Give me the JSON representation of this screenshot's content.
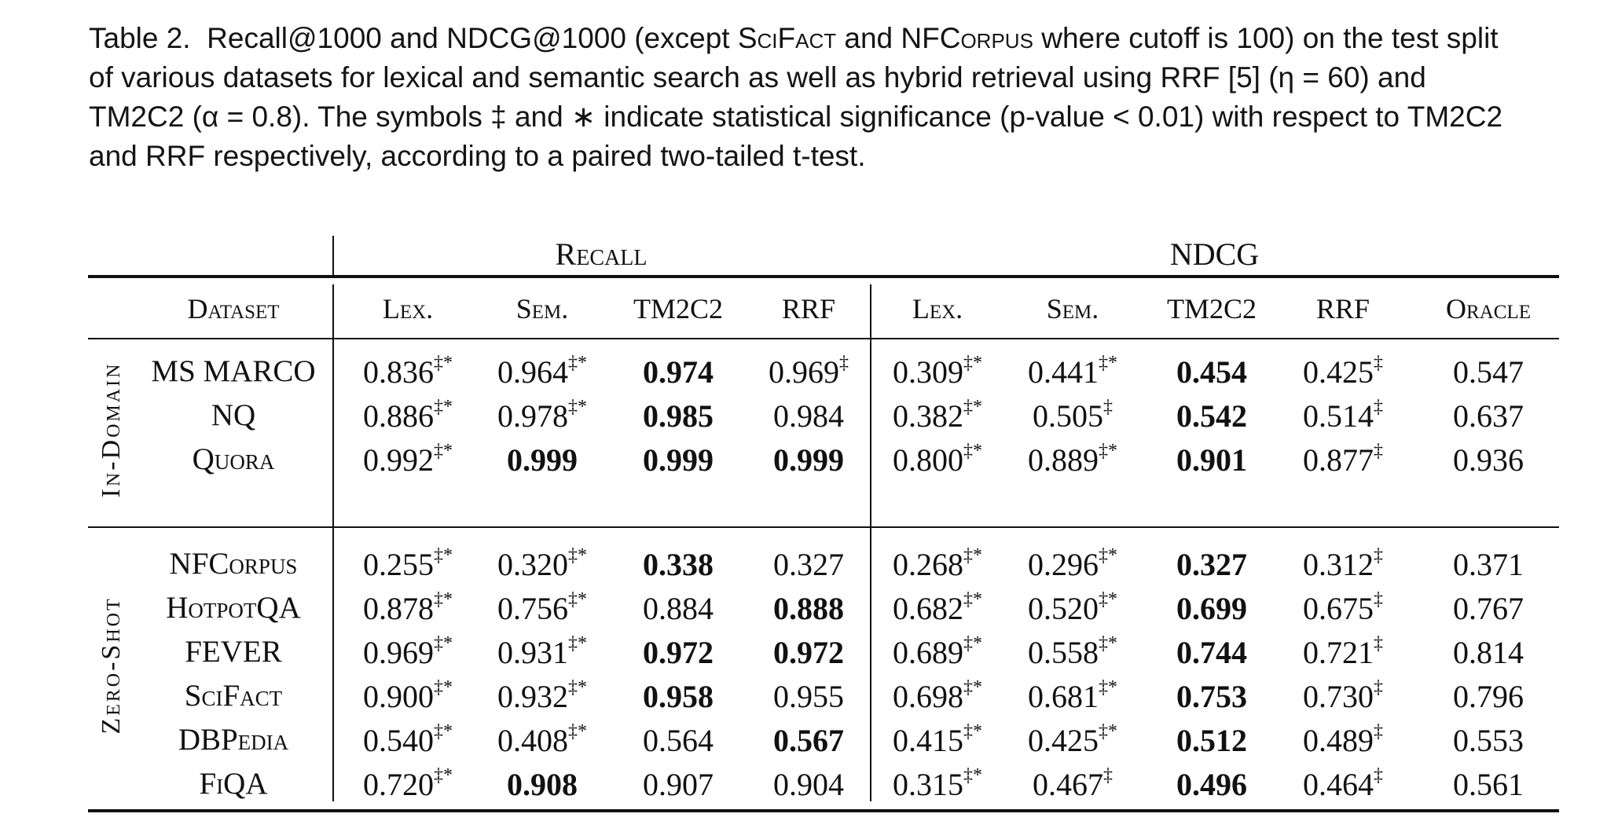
{
  "caption": {
    "label": "Table 2.",
    "line1_a": "Recall@1000 and NDCG@1000 (except ",
    "line1_sc1": "SciFact",
    "line1_b": " and ",
    "line1_sc2": "NFCorpus",
    "line1_c": " where cutoff is 100) on the test split",
    "line2": "of various datasets for lexical and semantic search as well as hybrid retrieval using RRF [5] (η = 60) and",
    "line3": "TM2C2 (α = 0.8). The symbols ‡ and ∗ indicate statistical significance (p-value < 0.01) with respect to TM2C2",
    "line4": "and RRF respectively, according to a paired two-tailed t-test."
  },
  "table": {
    "group_headers": {
      "recall": "Recall",
      "ndcg": "NDCG"
    },
    "columns": [
      "Dataset",
      "Lex.",
      "Sem.",
      "TM2C2",
      "RRF",
      "Lex.",
      "Sem.",
      "TM2C2",
      "RRF",
      "Oracle"
    ],
    "sections": [
      {
        "label": "In-Domain",
        "rows": [
          {
            "dataset": "MS MARCO",
            "cells": [
              {
                "v": "0.836",
                "s": "‡*",
                "b": false
              },
              {
                "v": "0.964",
                "s": "‡*",
                "b": false
              },
              {
                "v": "0.974",
                "s": "",
                "b": true
              },
              {
                "v": "0.969",
                "s": "‡",
                "b": false
              },
              {
                "v": "0.309",
                "s": "‡*",
                "b": false
              },
              {
                "v": "0.441",
                "s": "‡*",
                "b": false
              },
              {
                "v": "0.454",
                "s": "",
                "b": true
              },
              {
                "v": "0.425",
                "s": "‡",
                "b": false
              },
              {
                "v": "0.547",
                "s": "",
                "b": false
              }
            ]
          },
          {
            "dataset": "NQ",
            "cells": [
              {
                "v": "0.886",
                "s": "‡*",
                "b": false
              },
              {
                "v": "0.978",
                "s": "‡*",
                "b": false
              },
              {
                "v": "0.985",
                "s": "",
                "b": true
              },
              {
                "v": "0.984",
                "s": "",
                "b": false
              },
              {
                "v": "0.382",
                "s": "‡*",
                "b": false
              },
              {
                "v": "0.505",
                "s": "‡",
                "b": false
              },
              {
                "v": "0.542",
                "s": "",
                "b": true
              },
              {
                "v": "0.514",
                "s": "‡",
                "b": false
              },
              {
                "v": "0.637",
                "s": "",
                "b": false
              }
            ]
          },
          {
            "dataset": "Quora",
            "cells": [
              {
                "v": "0.992",
                "s": "‡*",
                "b": false
              },
              {
                "v": "0.999",
                "s": "",
                "b": true
              },
              {
                "v": "0.999",
                "s": "",
                "b": true
              },
              {
                "v": "0.999",
                "s": "",
                "b": true
              },
              {
                "v": "0.800",
                "s": "‡*",
                "b": false
              },
              {
                "v": "0.889",
                "s": "‡*",
                "b": false
              },
              {
                "v": "0.901",
                "s": "",
                "b": true
              },
              {
                "v": "0.877",
                "s": "‡",
                "b": false
              },
              {
                "v": "0.936",
                "s": "",
                "b": false
              }
            ]
          }
        ]
      },
      {
        "label": "Zero-Shot",
        "rows": [
          {
            "dataset": "NFCorpus",
            "cells": [
              {
                "v": "0.255",
                "s": "‡*",
                "b": false
              },
              {
                "v": "0.320",
                "s": "‡*",
                "b": false
              },
              {
                "v": "0.338",
                "s": "",
                "b": true
              },
              {
                "v": "0.327",
                "s": "",
                "b": false
              },
              {
                "v": "0.268",
                "s": "‡*",
                "b": false
              },
              {
                "v": "0.296",
                "s": "‡*",
                "b": false
              },
              {
                "v": "0.327",
                "s": "",
                "b": true
              },
              {
                "v": "0.312",
                "s": "‡",
                "b": false
              },
              {
                "v": "0.371",
                "s": "",
                "b": false
              }
            ]
          },
          {
            "dataset": "HotpotQA",
            "cells": [
              {
                "v": "0.878",
                "s": "‡*",
                "b": false
              },
              {
                "v": "0.756",
                "s": "‡*",
                "b": false
              },
              {
                "v": "0.884",
                "s": "",
                "b": false
              },
              {
                "v": "0.888",
                "s": "",
                "b": true
              },
              {
                "v": "0.682",
                "s": "‡*",
                "b": false
              },
              {
                "v": "0.520",
                "s": "‡*",
                "b": false
              },
              {
                "v": "0.699",
                "s": "",
                "b": true
              },
              {
                "v": "0.675",
                "s": "‡",
                "b": false
              },
              {
                "v": "0.767",
                "s": "",
                "b": false
              }
            ]
          },
          {
            "dataset": "FEVER",
            "cells": [
              {
                "v": "0.969",
                "s": "‡*",
                "b": false
              },
              {
                "v": "0.931",
                "s": "‡*",
                "b": false
              },
              {
                "v": "0.972",
                "s": "",
                "b": true
              },
              {
                "v": "0.972",
                "s": "",
                "b": true
              },
              {
                "v": "0.689",
                "s": "‡*",
                "b": false
              },
              {
                "v": "0.558",
                "s": "‡*",
                "b": false
              },
              {
                "v": "0.744",
                "s": "",
                "b": true
              },
              {
                "v": "0.721",
                "s": "‡",
                "b": false
              },
              {
                "v": "0.814",
                "s": "",
                "b": false
              }
            ]
          },
          {
            "dataset": "SciFact",
            "cells": [
              {
                "v": "0.900",
                "s": "‡*",
                "b": false
              },
              {
                "v": "0.932",
                "s": "‡*",
                "b": false
              },
              {
                "v": "0.958",
                "s": "",
                "b": true
              },
              {
                "v": "0.955",
                "s": "",
                "b": false
              },
              {
                "v": "0.698",
                "s": "‡*",
                "b": false
              },
              {
                "v": "0.681",
                "s": "‡*",
                "b": false
              },
              {
                "v": "0.753",
                "s": "",
                "b": true
              },
              {
                "v": "0.730",
                "s": "‡",
                "b": false
              },
              {
                "v": "0.796",
                "s": "",
                "b": false
              }
            ]
          },
          {
            "dataset": "DBPedia",
            "cells": [
              {
                "v": "0.540",
                "s": "‡*",
                "b": false
              },
              {
                "v": "0.408",
                "s": "‡*",
                "b": false
              },
              {
                "v": "0.564",
                "s": "",
                "b": false
              },
              {
                "v": "0.567",
                "s": "",
                "b": true
              },
              {
                "v": "0.415",
                "s": "‡*",
                "b": false
              },
              {
                "v": "0.425",
                "s": "‡*",
                "b": false
              },
              {
                "v": "0.512",
                "s": "",
                "b": true
              },
              {
                "v": "0.489",
                "s": "‡",
                "b": false
              },
              {
                "v": "0.553",
                "s": "",
                "b": false
              }
            ]
          },
          {
            "dataset": "FiQA",
            "cells": [
              {
                "v": "0.720",
                "s": "‡*",
                "b": false
              },
              {
                "v": "0.908",
                "s": "",
                "b": true
              },
              {
                "v": "0.907",
                "s": "",
                "b": false
              },
              {
                "v": "0.904",
                "s": "",
                "b": false
              },
              {
                "v": "0.315",
                "s": "‡*",
                "b": false
              },
              {
                "v": "0.467",
                "s": "‡",
                "b": false
              },
              {
                "v": "0.496",
                "s": "",
                "b": true
              },
              {
                "v": "0.464",
                "s": "‡",
                "b": false
              },
              {
                "v": "0.561",
                "s": "",
                "b": false
              }
            ]
          }
        ]
      }
    ]
  }
}
